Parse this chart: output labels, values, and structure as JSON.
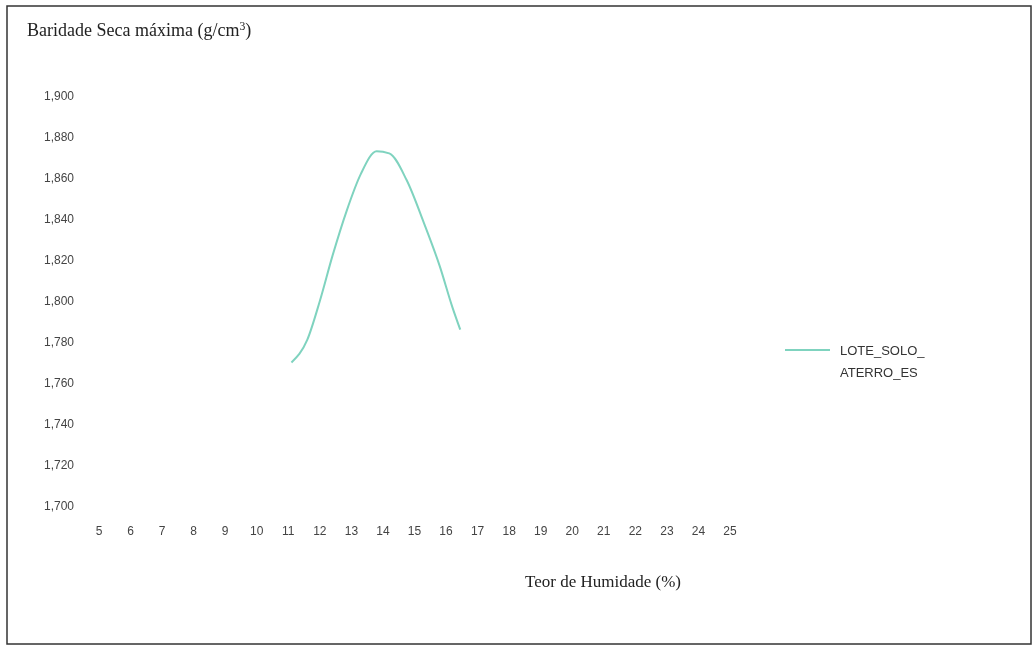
{
  "chart_data": {
    "type": "line",
    "title": "Baridade Seca máxima (g/cm$^{3}$)",
    "xlabel": "Teor de Humidade (%)",
    "series": [
      {
        "name": "LOTE_SOLO_ATERRO_ES",
        "color": "#7fd3bf",
        "x": [
          11.1,
          11.6,
          12.0,
          12.4,
          12.85,
          13.3,
          13.8,
          14.2,
          14.75,
          15.3,
          15.8,
          16.2,
          16.45
        ],
        "values": [
          1770,
          1781,
          1800,
          1822,
          1844,
          1862,
          1873,
          1872,
          1859,
          1838,
          1817,
          1797,
          1786
        ]
      }
    ],
    "xlim": [
      5,
      25
    ],
    "xticks": [
      5,
      6,
      7,
      8,
      9,
      10,
      11,
      12,
      13,
      14,
      15,
      16,
      17,
      18,
      19,
      20,
      21,
      22,
      23,
      24,
      25
    ],
    "ylim": [
      1700,
      1900
    ],
    "yticks": [
      {
        "value": 1700,
        "label": "1,700"
      },
      {
        "value": 1720,
        "label": "1,720"
      },
      {
        "value": 1740,
        "label": "1,740"
      },
      {
        "value": 1760,
        "label": "1,760"
      },
      {
        "value": 1780,
        "label": "1,780"
      },
      {
        "value": 1800,
        "label": "1,800"
      },
      {
        "value": 1820,
        "label": "1,820"
      },
      {
        "value": 1840,
        "label": "1,840"
      },
      {
        "value": 1860,
        "label": "1,860"
      },
      {
        "value": 1880,
        "label": "1,880"
      },
      {
        "value": 1900,
        "label": "1,900"
      }
    ],
    "legend": "right",
    "grid": false,
    "marker": "none",
    "line_style": "solid"
  }
}
